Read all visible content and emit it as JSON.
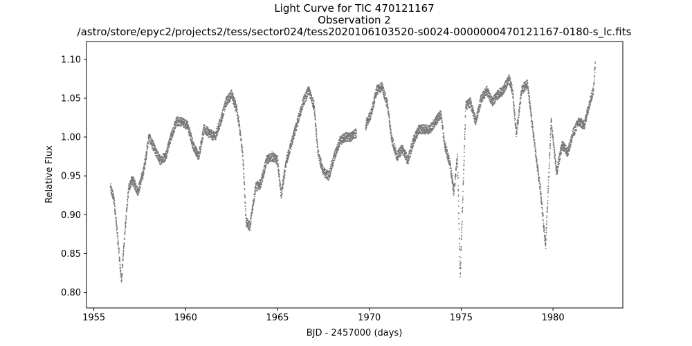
{
  "chart_data": {
    "type": "scatter",
    "title_lines": [
      "Light Curve for TIC 470121167",
      "Observation 2",
      "/astro/store/epyc2/projects2/tess/sector024/tess2020106103520-s0024-0000000470121167-0180-s_lc.fits"
    ],
    "xlabel": "BJD - 2457000 (days)",
    "ylabel": "Relative Flux",
    "xlim": [
      1954.6,
      1983.8
    ],
    "ylim": [
      0.78,
      1.123
    ],
    "xticks": [
      1955,
      1960,
      1965,
      1970,
      1975,
      1980
    ],
    "xtick_labels": [
      "1955",
      "1960",
      "1965",
      "1970",
      "1975",
      "1980"
    ],
    "yticks": [
      0.8,
      0.85,
      0.9,
      0.95,
      1.0,
      1.05,
      1.1
    ],
    "ytick_labels": [
      "0.80",
      "0.85",
      "0.90",
      "0.95",
      "1.00",
      "1.05",
      "1.10"
    ],
    "marker_color": "#777777",
    "grid": false,
    "series": [
      {
        "x": [
          1955.9,
          1956.1,
          1956.3,
          1956.5,
          1956.7,
          1956.9,
          1957.1,
          1957.4,
          1957.7,
          1958.0,
          1958.3,
          1958.6,
          1958.9,
          1959.2,
          1959.5,
          1959.8,
          1960.1,
          1960.4,
          1960.7,
          1961.0,
          1961.3,
          1961.6,
          1961.9,
          1962.2,
          1962.5,
          1962.8,
          1963.1,
          1963.3,
          1963.5,
          1963.8,
          1964.1,
          1964.4,
          1964.7,
          1965.0,
          1965.2,
          1965.5,
          1965.8,
          1966.1,
          1966.4,
          1966.7,
          1967.0,
          1967.2,
          1967.5,
          1967.8,
          1968.1,
          1968.4,
          1968.7,
          1969.0,
          1969.3
        ],
        "y": [
          0.935,
          0.92,
          0.87,
          0.815,
          0.88,
          0.935,
          0.945,
          0.93,
          0.955,
          1.0,
          0.985,
          0.97,
          0.975,
          1.0,
          1.02,
          1.02,
          1.015,
          0.99,
          0.975,
          1.01,
          1.005,
          1.0,
          1.02,
          1.045,
          1.055,
          1.035,
          0.98,
          0.89,
          0.885,
          0.935,
          0.94,
          0.97,
          0.975,
          0.97,
          0.925,
          0.97,
          0.995,
          1.02,
          1.045,
          1.06,
          1.04,
          0.98,
          0.955,
          0.95,
          0.975,
          0.995,
          1.0,
          1.0,
          1.005
        ]
      },
      {
        "x": [
          1969.8,
          1970.1,
          1970.4,
          1970.7,
          1971.0,
          1971.2,
          1971.5,
          1971.8,
          1972.1,
          1972.4,
          1972.7,
          1973.0,
          1973.3,
          1973.6,
          1973.9,
          1974.1,
          1974.4,
          1974.6,
          1974.8,
          1974.95,
          1975.1,
          1975.25,
          1975.5,
          1975.8,
          1976.1,
          1976.4,
          1976.7,
          1977.0,
          1977.3,
          1977.6,
          1977.8,
          1978.0,
          1978.3,
          1978.6,
          1978.9,
          1979.1,
          1979.3,
          1979.6,
          1979.9,
          1980.2,
          1980.5,
          1980.8,
          1981.1,
          1981.4,
          1981.7,
          1982.0,
          1982.2
        ],
        "y": [
          1.015,
          1.03,
          1.06,
          1.065,
          1.04,
          1.0,
          0.975,
          0.985,
          0.97,
          0.995,
          1.01,
          1.01,
          1.01,
          1.02,
          1.03,
          0.99,
          0.965,
          0.93,
          0.975,
          0.82,
          0.93,
          1.04,
          1.045,
          1.02,
          1.05,
          1.06,
          1.045,
          1.055,
          1.06,
          1.075,
          1.06,
          1.005,
          1.06,
          1.07,
          1.01,
          0.97,
          0.935,
          0.86,
          1.02,
          0.955,
          0.99,
          0.98,
          1.005,
          1.02,
          1.015,
          1.045,
          1.06
        ]
      },
      {
        "x": [
          1982.2,
          1982.3
        ],
        "y": [
          1.06,
          1.095
        ]
      }
    ]
  }
}
